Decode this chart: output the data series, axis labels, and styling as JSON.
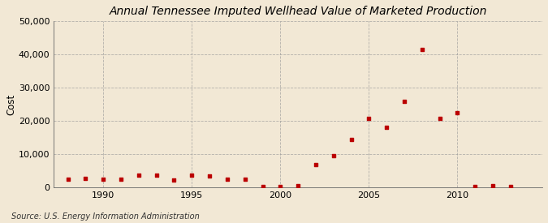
{
  "title": "Annual Tennessee Imputed Wellhead Value of Marketed Production",
  "ylabel": "Cost",
  "source": "Source: U.S. Energy Information Administration",
  "background_color": "#f2e8d5",
  "plot_background_color": "#f2e8d5",
  "grid_color": "#999999",
  "marker_color": "#bb0000",
  "xlim": [
    1987.2,
    2014.8
  ],
  "ylim": [
    0,
    50000
  ],
  "yticks": [
    0,
    10000,
    20000,
    30000,
    40000,
    50000
  ],
  "ytick_labels": [
    "0",
    "10,000",
    "20,000",
    "30,000",
    "40,000",
    "50,000"
  ],
  "xticks": [
    1990,
    1995,
    2000,
    2005,
    2010
  ],
  "years": [
    1988,
    1989,
    1990,
    1991,
    1992,
    1993,
    1994,
    1995,
    1996,
    1997,
    1998,
    1999,
    2000,
    2001,
    2002,
    2003,
    2004,
    2005,
    2006,
    2007,
    2008,
    2009,
    2010,
    2011,
    2012,
    2013
  ],
  "values": [
    2500,
    2800,
    2600,
    2400,
    3800,
    3800,
    2200,
    3800,
    3500,
    2600,
    2400,
    300,
    200,
    500,
    6800,
    9500,
    14500,
    20800,
    18000,
    26000,
    41500,
    20800,
    22500,
    300,
    500,
    300
  ]
}
